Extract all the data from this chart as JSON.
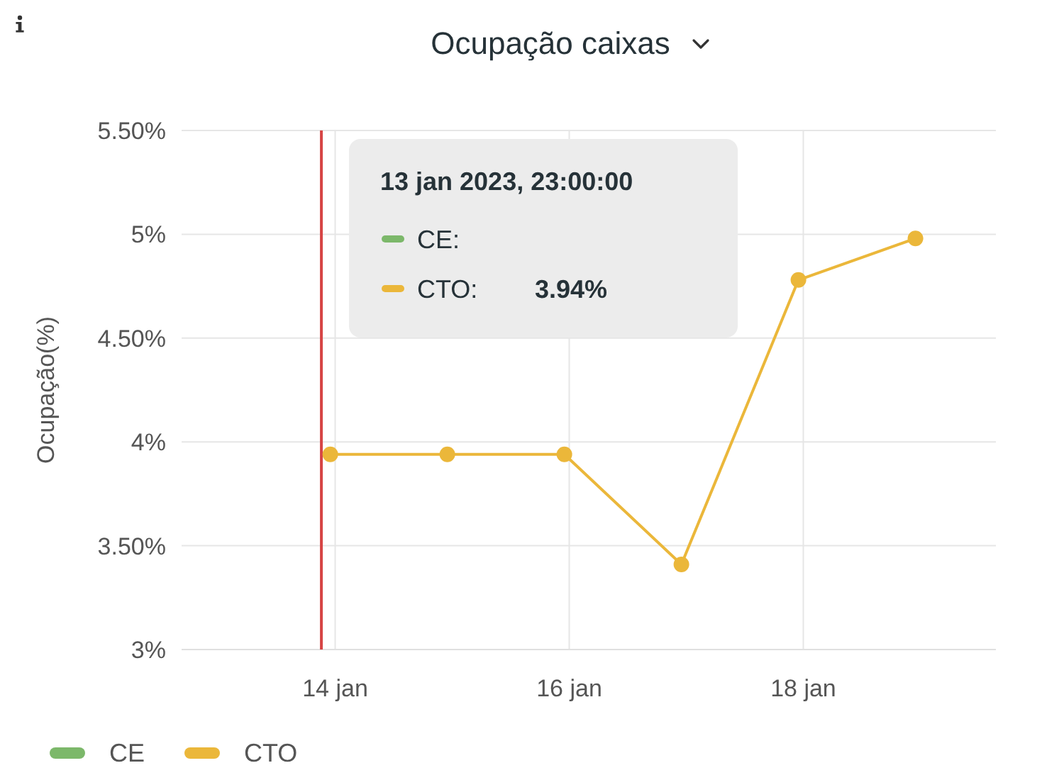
{
  "chart_data": {
    "type": "line",
    "title": "Ocupação caixas",
    "ylabel": "Ocupação(%)",
    "x": [
      "2023-01-13T23:00",
      "2023-01-14T23:00",
      "2023-01-15T23:00",
      "2023-01-16T23:00",
      "2023-01-17T23:00",
      "2023-01-18T23:00"
    ],
    "series": [
      {
        "name": "CE",
        "color": "#7cb86a",
        "values": [
          null,
          null,
          null,
          null,
          null,
          null
        ]
      },
      {
        "name": "CTO",
        "color": "#ebb73a",
        "values": [
          3.94,
          3.94,
          3.94,
          3.41,
          4.78,
          4.98
        ]
      }
    ],
    "xlim": [
      "2023-01-12T16:30",
      "2023-01-19T15:30"
    ],
    "xticks": [
      {
        "value": "2023-01-14",
        "label": "14 jan"
      },
      {
        "value": "2023-01-16",
        "label": "16 jan"
      },
      {
        "value": "2023-01-18",
        "label": "18 jan"
      }
    ],
    "ylim": [
      3,
      5.5
    ],
    "yticks": [
      {
        "value": 3,
        "label": "3%"
      },
      {
        "value": 3.5,
        "label": "3.50%"
      },
      {
        "value": 4,
        "label": "4%"
      },
      {
        "value": 4.5,
        "label": "4.50%"
      },
      {
        "value": 5,
        "label": "5%"
      },
      {
        "value": 5.5,
        "label": "5.50%"
      }
    ],
    "ref_lines": [
      {
        "axis": "x",
        "value": "2023-01-13T21:10",
        "color": "#d64545"
      }
    ],
    "annotations": [
      "13 jan 2023, 23:00:00",
      "CE:",
      "CTO:",
      "3.94%"
    ],
    "grid": true,
    "legend": "bottom",
    "marker": "circle"
  }
}
